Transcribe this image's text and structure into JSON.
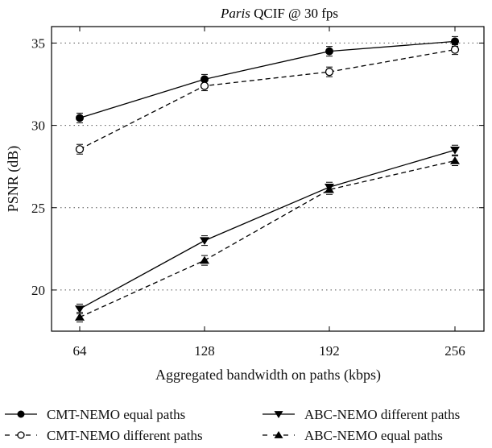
{
  "chart_data": {
    "type": "line",
    "title_italic": "Paris",
    "title_rest": " QCIF @ 30 fps",
    "xlabel": "Aggregated bandwidth on paths (kbps)",
    "ylabel": "PSNR (dB)",
    "categories": [
      "64",
      "128",
      "192",
      "256"
    ],
    "y_ticks": [
      "20",
      "25",
      "30",
      "35"
    ],
    "ylim": [
      17.5,
      36
    ],
    "grid": "horizontal dotted",
    "legend_position": "bottom",
    "series": [
      {
        "name": "CMT-NEMO equal paths",
        "values": [
          30.45,
          32.8,
          34.5,
          35.1
        ],
        "line": "solid",
        "marker": "filled-circle"
      },
      {
        "name": "CMT-NEMO different paths",
        "values": [
          28.55,
          32.4,
          33.25,
          34.6
        ],
        "line": "dashed",
        "marker": "open-circle"
      },
      {
        "name": "ABC-NEMO different paths",
        "values": [
          18.85,
          23.0,
          26.25,
          28.5
        ],
        "line": "solid",
        "marker": "down-triangle"
      },
      {
        "name": "ABC-NEMO equal paths",
        "values": [
          18.35,
          21.8,
          26.1,
          27.85
        ],
        "line": "dashed",
        "marker": "up-triangle"
      }
    ],
    "colors": {
      "line": "#000000",
      "grid": "#555555"
    }
  }
}
